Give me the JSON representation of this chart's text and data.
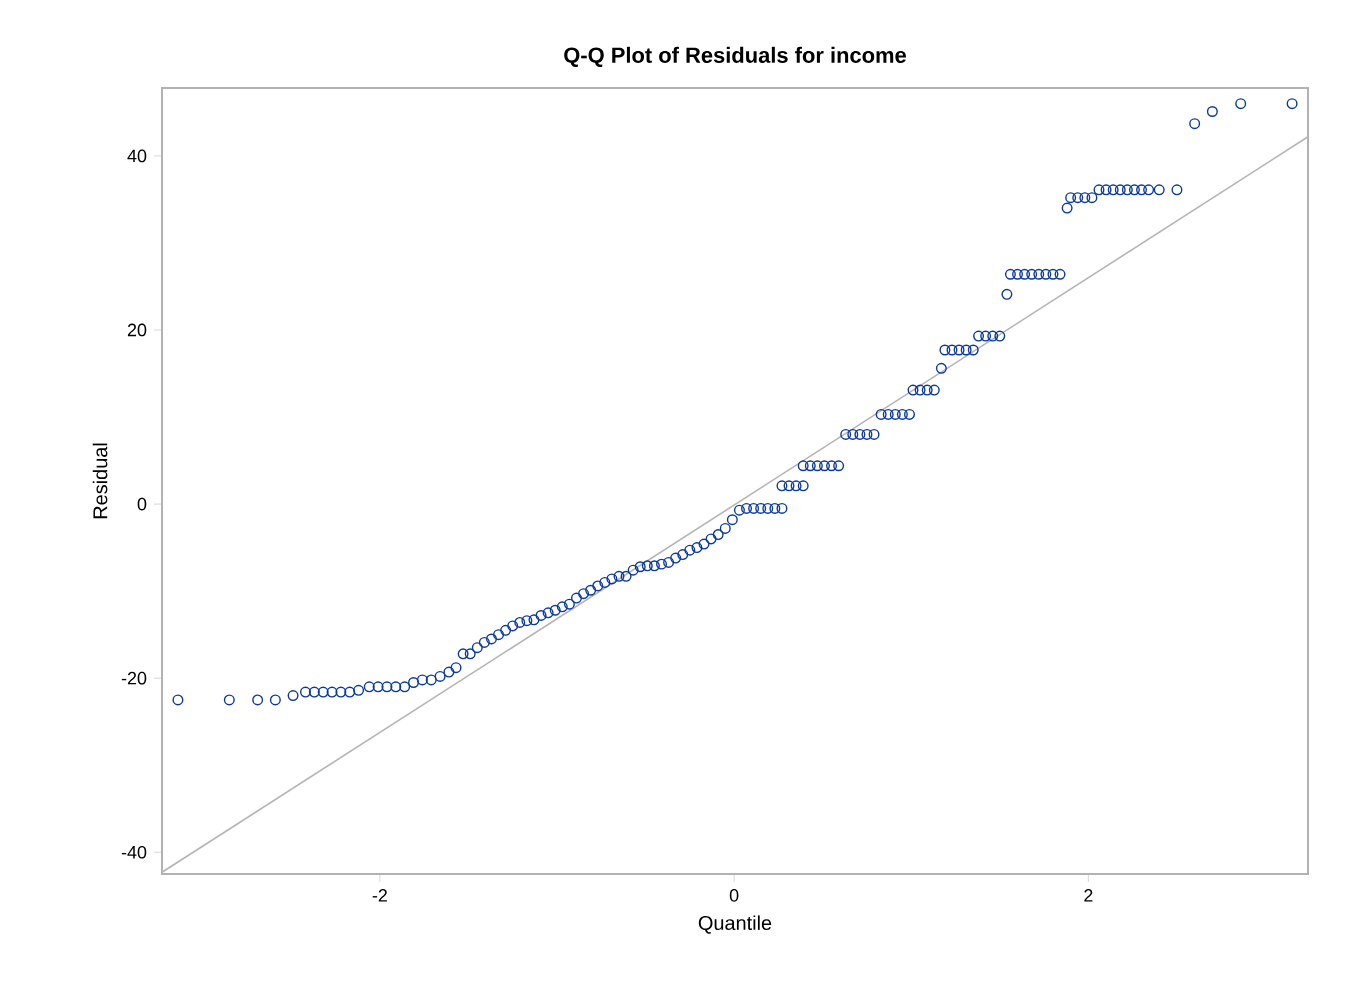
{
  "chart_data": {
    "type": "scatter",
    "title": "Q-Q Plot of Residuals for income",
    "xlabel": "Quantile",
    "ylabel": "Residual",
    "xlim": [
      -3.23,
      3.24
    ],
    "ylim": [
      -42.5,
      47.8
    ],
    "xticks": [
      -2,
      0,
      2
    ],
    "yticks": [
      -40,
      -20,
      0,
      20,
      40
    ],
    "marker": "circle",
    "series": [
      {
        "color": "#0a3a9e",
        "x": [
          -3.14,
          -2.85,
          -2.69,
          -2.59,
          -2.49,
          -2.42,
          -2.37,
          -2.32,
          -2.27,
          -2.22,
          -2.17,
          -2.12,
          -2.06,
          -2.01,
          -1.96,
          -1.91,
          -1.86,
          -1.81,
          -1.76,
          -1.71,
          -1.66,
          -1.61,
          -1.57,
          -1.53,
          -1.49,
          -1.45,
          -1.41,
          -1.37,
          -1.33,
          -1.29,
          -1.25,
          -1.21,
          -1.17,
          -1.13,
          -1.09,
          -1.05,
          -1.01,
          -0.97,
          -0.93,
          -0.89,
          -0.85,
          -0.81,
          -0.77,
          -0.73,
          -0.69,
          -0.65,
          -0.61,
          -0.57,
          -0.53,
          -0.49,
          -0.45,
          -0.41,
          -0.37,
          -0.33,
          -0.29,
          -0.25,
          -0.21,
          -0.17,
          -0.13,
          -0.09,
          -0.05,
          -0.01,
          0.03,
          0.07,
          0.11,
          0.15,
          0.19,
          0.23,
          0.27,
          0.27,
          0.31,
          0.35,
          0.39,
          0.39,
          0.43,
          0.47,
          0.51,
          0.55,
          0.59,
          0.63,
          0.67,
          0.71,
          0.75,
          0.79,
          0.83,
          0.87,
          0.91,
          0.95,
          0.99,
          1.01,
          1.05,
          1.09,
          1.13,
          1.17,
          1.19,
          1.23,
          1.27,
          1.31,
          1.35,
          1.38,
          1.42,
          1.46,
          1.5,
          1.54,
          1.56,
          1.6,
          1.64,
          1.68,
          1.72,
          1.76,
          1.8,
          1.84,
          1.88,
          1.9,
          1.94,
          1.98,
          2.02,
          2.06,
          2.1,
          2.14,
          2.18,
          2.22,
          2.26,
          2.3,
          2.34,
          2.4,
          2.5,
          2.6,
          2.7,
          2.86,
          3.15
        ],
        "values": [
          -22.5,
          -22.5,
          -22.5,
          -22.5,
          -22,
          -21.6,
          -21.6,
          -21.6,
          -21.6,
          -21.6,
          -21.6,
          -21.4,
          -21,
          -21,
          -21,
          -21,
          -21,
          -20.5,
          -20.2,
          -20.2,
          -19.8,
          -19.3,
          -18.8,
          -17.2,
          -17.2,
          -16.5,
          -15.9,
          -15.5,
          -15,
          -14.5,
          -14,
          -13.6,
          -13.4,
          -13.3,
          -12.8,
          -12.5,
          -12.2,
          -11.8,
          -11.5,
          -10.8,
          -10.3,
          -9.9,
          -9.4,
          -9,
          -8.6,
          -8.3,
          -8.3,
          -7.6,
          -7.2,
          -7.1,
          -7.1,
          -6.9,
          -6.7,
          -6.2,
          -5.8,
          -5.3,
          -5,
          -4.6,
          -4,
          -3.5,
          -2.8,
          -1.8,
          -0.7,
          -0.5,
          -0.5,
          -0.5,
          -0.5,
          -0.5,
          -0.5,
          2.1,
          2.1,
          2.1,
          2.1,
          4.4,
          4.4,
          4.4,
          4.4,
          4.4,
          4.4,
          8,
          8,
          8,
          8,
          8,
          10.3,
          10.3,
          10.3,
          10.3,
          10.3,
          13.1,
          13.1,
          13.1,
          13.1,
          15.6,
          17.7,
          17.7,
          17.7,
          17.7,
          17.7,
          19.3,
          19.3,
          19.3,
          19.3,
          24.1,
          26.4,
          26.4,
          26.4,
          26.4,
          26.4,
          26.4,
          26.4,
          26.4,
          34,
          35.2,
          35.2,
          35.2,
          35.2,
          36.1,
          36.1,
          36.1,
          36.1,
          36.1,
          36.1,
          36.1,
          36.1,
          36.1,
          36.1,
          43.7,
          45.1,
          46,
          46
        ]
      },
      {
        "type": "line",
        "color": "#b4b4b4",
        "marker": "none",
        "line_style": "solid",
        "x": [
          -3.23,
          3.24
        ],
        "values": [
          -42.3,
          42.2
        ]
      }
    ]
  }
}
